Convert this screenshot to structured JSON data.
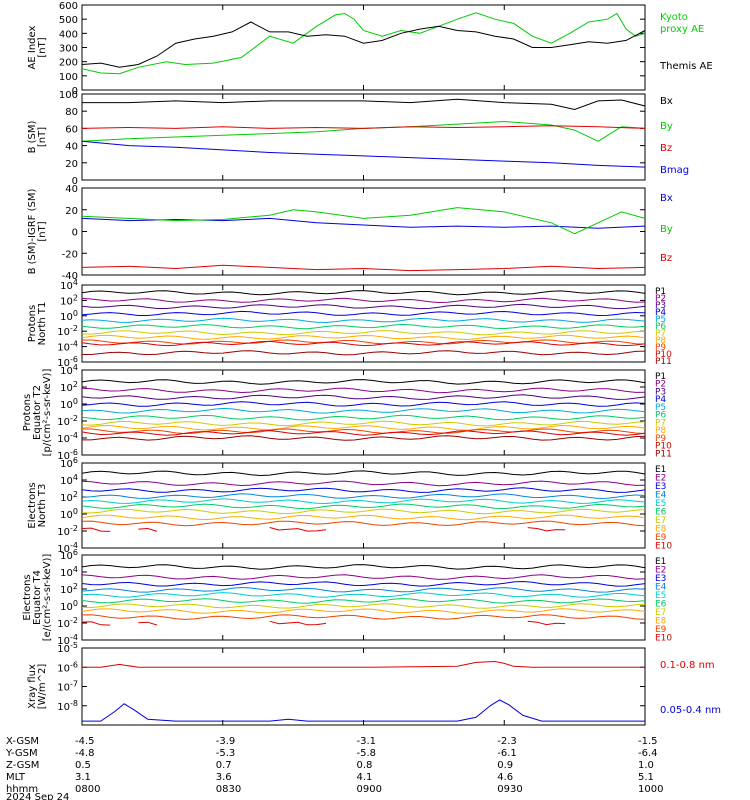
{
  "date_label": "2024 Sep 24",
  "ephemeris": {
    "rows": [
      {
        "label": "X-GSM",
        "values": [
          "-4.5",
          "-3.9",
          "-3.1",
          "-2.3",
          "-1.5"
        ]
      },
      {
        "label": "Y-GSM",
        "values": [
          "-4.8",
          "-5.3",
          "-5.8",
          "-6.1",
          "-6.4"
        ]
      },
      {
        "label": "Z-GSM",
        "values": [
          "0.5",
          "0.7",
          "0.8",
          "0.9",
          "1.0"
        ]
      },
      {
        "label": "MLT",
        "values": [
          "3.1",
          "3.6",
          "4.1",
          "4.6",
          "5.1"
        ]
      },
      {
        "label": "hhmm",
        "values": [
          "0800",
          "0830",
          "0900",
          "0930",
          "1000"
        ]
      }
    ]
  },
  "chart_data": [
    {
      "type": "line",
      "ylabel": "AE Index\n[nT]",
      "ylim": [
        0,
        600
      ],
      "yticks": [
        "0",
        "100",
        "200",
        "300",
        "400",
        "500",
        "600"
      ],
      "xlim": [
        "08:00",
        "10:00"
      ],
      "series": [
        {
          "name": "Kyoto\nproxy AE",
          "color": "#00cc00",
          "x": [
            0,
            4,
            8,
            12,
            18,
            22,
            28,
            34,
            40,
            45,
            50,
            54,
            56,
            58,
            60,
            64,
            68,
            72,
            76,
            80,
            84,
            88,
            92,
            96,
            100,
            104,
            108,
            112,
            114,
            116,
            118,
            120
          ],
          "y": [
            150,
            120,
            115,
            160,
            200,
            180,
            190,
            230,
            380,
            330,
            450,
            530,
            540,
            500,
            420,
            380,
            420,
            400,
            450,
            500,
            545,
            500,
            470,
            380,
            330,
            400,
            480,
            500,
            540,
            430,
            380,
            400
          ]
        },
        {
          "name": "Themis AE",
          "color": "#000000",
          "x": [
            0,
            4,
            8,
            12,
            16,
            20,
            24,
            28,
            32,
            36,
            40,
            44,
            48,
            52,
            56,
            60,
            64,
            68,
            72,
            76,
            80,
            84,
            88,
            92,
            96,
            100,
            104,
            108,
            112,
            116,
            120
          ],
          "y": [
            180,
            190,
            160,
            180,
            240,
            330,
            360,
            380,
            410,
            480,
            410,
            410,
            380,
            390,
            380,
            330,
            350,
            400,
            430,
            450,
            420,
            410,
            380,
            360,
            300,
            300,
            320,
            340,
            330,
            350,
            420
          ]
        }
      ]
    },
    {
      "type": "line",
      "ylabel": "B (SM)\n[nT]",
      "ylim": [
        0,
        100
      ],
      "yticks": [
        "0",
        "20",
        "40",
        "60",
        "80",
        "100"
      ],
      "series": [
        {
          "name": "Bx",
          "color": "#000000",
          "x": [
            0,
            10,
            20,
            30,
            40,
            50,
            60,
            70,
            80,
            90,
            100,
            105,
            110,
            115,
            120
          ],
          "y": [
            90,
            90,
            92,
            90,
            92,
            92,
            92,
            90,
            94,
            90,
            88,
            82,
            92,
            93,
            86
          ]
        },
        {
          "name": "By",
          "color": "#00cc00",
          "x": [
            0,
            10,
            20,
            30,
            40,
            50,
            60,
            70,
            80,
            90,
            100,
            105,
            110,
            115,
            120
          ],
          "y": [
            45,
            48,
            50,
            52,
            54,
            56,
            60,
            62,
            65,
            68,
            64,
            58,
            45,
            62,
            60
          ]
        },
        {
          "name": "Bz",
          "color": "#dd0000",
          "x": [
            0,
            10,
            20,
            30,
            40,
            50,
            60,
            70,
            80,
            90,
            100,
            110,
            120
          ],
          "y": [
            60,
            61,
            60,
            62,
            60,
            61,
            60,
            62,
            61,
            62,
            63,
            62,
            60
          ]
        },
        {
          "name": "Bmag",
          "color": "#0000dd",
          "x": [
            0,
            10,
            20,
            30,
            40,
            50,
            60,
            70,
            80,
            90,
            100,
            110,
            120
          ],
          "y": [
            45,
            40,
            38,
            35,
            32,
            30,
            28,
            26,
            24,
            22,
            20,
            17,
            15
          ]
        }
      ]
    },
    {
      "type": "line",
      "ylabel": "B (SM)-IGRF (SM)\n[nT]",
      "ylim": [
        -40,
        40
      ],
      "yticks": [
        "-40",
        "-20",
        "0",
        "20",
        "40"
      ],
      "series": [
        {
          "name": "Bx",
          "color": "#0000dd",
          "x": [
            0,
            10,
            20,
            30,
            40,
            50,
            60,
            70,
            80,
            90,
            100,
            110,
            120
          ],
          "y": [
            12,
            10,
            11,
            10,
            12,
            8,
            6,
            4,
            5,
            4,
            5,
            3,
            5
          ]
        },
        {
          "name": "By",
          "color": "#00cc00",
          "x": [
            0,
            10,
            20,
            30,
            40,
            45,
            50,
            60,
            70,
            80,
            90,
            100,
            105,
            110,
            115,
            120
          ],
          "y": [
            14,
            12,
            10,
            11,
            15,
            20,
            18,
            12,
            15,
            22,
            18,
            8,
            -2,
            8,
            18,
            12
          ]
        },
        {
          "name": "Bz",
          "color": "#dd0000",
          "x": [
            0,
            10,
            20,
            30,
            40,
            50,
            60,
            70,
            80,
            90,
            100,
            110,
            120
          ],
          "y": [
            -33,
            -32,
            -34,
            -31,
            -33,
            -35,
            -34,
            -36,
            -35,
            -34,
            -32,
            -34,
            -33
          ]
        }
      ]
    },
    {
      "type": "line",
      "ylabel": "Protons\nNorth T1",
      "ylog": true,
      "ylim": [
        -6,
        4
      ],
      "yticks": [
        "10^4",
        "10^2",
        "10^0",
        "10^-2",
        "10^-4",
        "10^-6"
      ],
      "channels": [
        {
          "name": "P1",
          "color": "#000000",
          "log": 3.0
        },
        {
          "name": "P2",
          "color": "#8b008b",
          "log": 2.0
        },
        {
          "name": "P3",
          "color": "#4b0082",
          "log": 1.2
        },
        {
          "name": "P4",
          "color": "#0000dd",
          "log": 0.3
        },
        {
          "name": "P5",
          "color": "#00aadd",
          "log": -0.6
        },
        {
          "name": "P6",
          "color": "#00cc66",
          "log": -1.4
        },
        {
          "name": "P7",
          "color": "#cccc00",
          "log": -2.2
        },
        {
          "name": "P8",
          "color": "#ffaa00",
          "log": -2.8
        },
        {
          "name": "P9",
          "color": "#ee4400",
          "log": -3.4
        },
        {
          "name": "P10",
          "color": "#dd0000",
          "log": -3.6
        },
        {
          "name": "P11",
          "color": "#990000",
          "log": -4.8
        }
      ]
    },
    {
      "type": "line",
      "ylabel": "Protons\nEquator T2\n[p/(cm²-s-sr-keV)]",
      "ylog": true,
      "ylim": [
        -6,
        4
      ],
      "yticks": [
        "10^4",
        "10^2",
        "10^0",
        "10^-2",
        "10^-4",
        "10^-6"
      ],
      "channels": [
        {
          "name": "P1",
          "color": "#000000",
          "log": 2.6
        },
        {
          "name": "P2",
          "color": "#8b008b",
          "log": 1.6
        },
        {
          "name": "P3",
          "color": "#4b0082",
          "log": 0.8
        },
        {
          "name": "P4",
          "color": "#0000dd",
          "log": 0.0
        },
        {
          "name": "P5",
          "color": "#00aadd",
          "log": -0.8
        },
        {
          "name": "P6",
          "color": "#00cc66",
          "log": -1.6
        },
        {
          "name": "P7",
          "color": "#cccc00",
          "log": -2.3
        },
        {
          "name": "P8",
          "color": "#ffaa00",
          "log": -2.8
        },
        {
          "name": "P9",
          "color": "#ee4400",
          "log": -3.2
        },
        {
          "name": "P10",
          "color": "#dd0000",
          "log": -3.4
        },
        {
          "name": "P11",
          "color": "#990000",
          "log": -4.0
        }
      ]
    },
    {
      "type": "line",
      "ylabel": "Electrons\nNorth T3",
      "ylog": true,
      "ylim": [
        -4,
        6
      ],
      "yticks": [
        "10^6",
        "10^4",
        "10^2",
        "10^0",
        "10^-2",
        "10^-4"
      ],
      "channels": [
        {
          "name": "E1",
          "color": "#000000",
          "log": 4.8
        },
        {
          "name": "E2",
          "color": "#8b008b",
          "log": 3.6
        },
        {
          "name": "E3",
          "color": "#0000dd",
          "log": 2.8
        },
        {
          "name": "E4",
          "color": "#0088dd",
          "log": 2.1
        },
        {
          "name": "E5",
          "color": "#00cccc",
          "log": 1.5
        },
        {
          "name": "E6",
          "color": "#00cc66",
          "log": 0.9
        },
        {
          "name": "E7",
          "color": "#cccc00",
          "log": 0.3
        },
        {
          "name": "E8",
          "color": "#ffaa00",
          "log": -0.4
        },
        {
          "name": "E9",
          "color": "#ee4400",
          "log": -1.1
        },
        {
          "name": "E10",
          "color": "#dd0000",
          "log": -1.7,
          "sparse": true
        }
      ]
    },
    {
      "type": "line",
      "ylabel": "Electrons\nEquator T4\n[e/(cm²-s-sr-keV)]",
      "ylog": true,
      "ylim": [
        -4,
        6
      ],
      "yticks": [
        "10^6",
        "10^4",
        "10^2",
        "10^0",
        "10^-2",
        "10^-4"
      ],
      "channels": [
        {
          "name": "E1",
          "color": "#000000",
          "log": 4.6
        },
        {
          "name": "E2",
          "color": "#8b008b",
          "log": 3.4
        },
        {
          "name": "E3",
          "color": "#0000dd",
          "log": 2.6
        },
        {
          "name": "E4",
          "color": "#0088dd",
          "log": 1.9
        },
        {
          "name": "E5",
          "color": "#00cccc",
          "log": 1.3
        },
        {
          "name": "E6",
          "color": "#00cc66",
          "log": 0.6
        },
        {
          "name": "E7",
          "color": "#cccc00",
          "log": 0.0
        },
        {
          "name": "E8",
          "color": "#ffaa00",
          "log": -0.6
        },
        {
          "name": "E9",
          "color": "#ee4400",
          "log": -1.3
        },
        {
          "name": "E10",
          "color": "#dd0000",
          "log": -1.9,
          "sparse": true
        }
      ]
    },
    {
      "type": "line",
      "ylabel": "Xray flux\n[W/m^2]",
      "ylog": true,
      "ylim": [
        -9,
        -5
      ],
      "yticks": [
        "10^-5",
        "10^-6",
        "10^-7",
        "10^-8"
      ],
      "series": [
        {
          "name": "0.1-0.8 nm",
          "color": "#dd0000",
          "x": [
            0,
            4,
            8,
            12,
            20,
            40,
            60,
            80,
            84,
            88,
            90,
            92,
            96,
            100,
            110,
            120
          ],
          "log": [
            -6.0,
            -6.0,
            -5.85,
            -6.0,
            -6.0,
            -6.0,
            -6.0,
            -5.95,
            -5.75,
            -5.7,
            -5.8,
            -5.95,
            -6.0,
            -6.0,
            -6.0,
            -6.0
          ]
        },
        {
          "name": "0.05-0.4 nm",
          "color": "#0000dd",
          "x": [
            0,
            4,
            7,
            9,
            11,
            14,
            20,
            30,
            40,
            44,
            48,
            60,
            80,
            84,
            87,
            89,
            91,
            94,
            98,
            104,
            110,
            120
          ],
          "log": [
            -8.8,
            -8.8,
            -8.3,
            -7.9,
            -8.2,
            -8.7,
            -8.8,
            -8.8,
            -8.8,
            -8.7,
            -8.8,
            -8.8,
            -8.8,
            -8.6,
            -8.0,
            -7.7,
            -7.95,
            -8.5,
            -8.8,
            -8.8,
            -8.8,
            -8.8
          ]
        }
      ]
    }
  ]
}
